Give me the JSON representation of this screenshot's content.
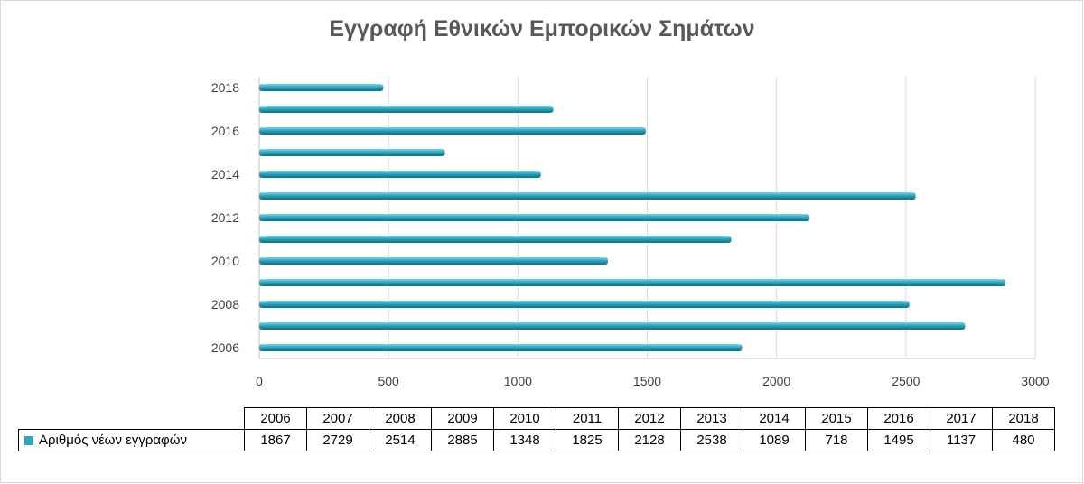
{
  "chart_data": {
    "type": "bar",
    "orientation": "horizontal",
    "title": "Εγγραφή Εθνικών Εμπορικών Σημάτων",
    "categories": [
      "2006",
      "2007",
      "2008",
      "2009",
      "2010",
      "2011",
      "2012",
      "2013",
      "2014",
      "2015",
      "2016",
      "2017",
      "2018"
    ],
    "y_tick_labels": [
      "2006",
      "2008",
      "2010",
      "2012",
      "2014",
      "2016",
      "2018"
    ],
    "series": [
      {
        "name": "Αριθμός νέων εγγραφών",
        "values": [
          1867,
          2729,
          2514,
          2885,
          1348,
          1825,
          2128,
          2538,
          1089,
          718,
          1495,
          1137,
          480
        ],
        "color": "#2aa6bf"
      }
    ],
    "xlim": [
      0,
      3000
    ],
    "x_ticks": [
      "0",
      "500",
      "1000",
      "1500",
      "2000",
      "2500",
      "3000"
    ],
    "grid": true,
    "legend_placement": "data table below chart"
  }
}
